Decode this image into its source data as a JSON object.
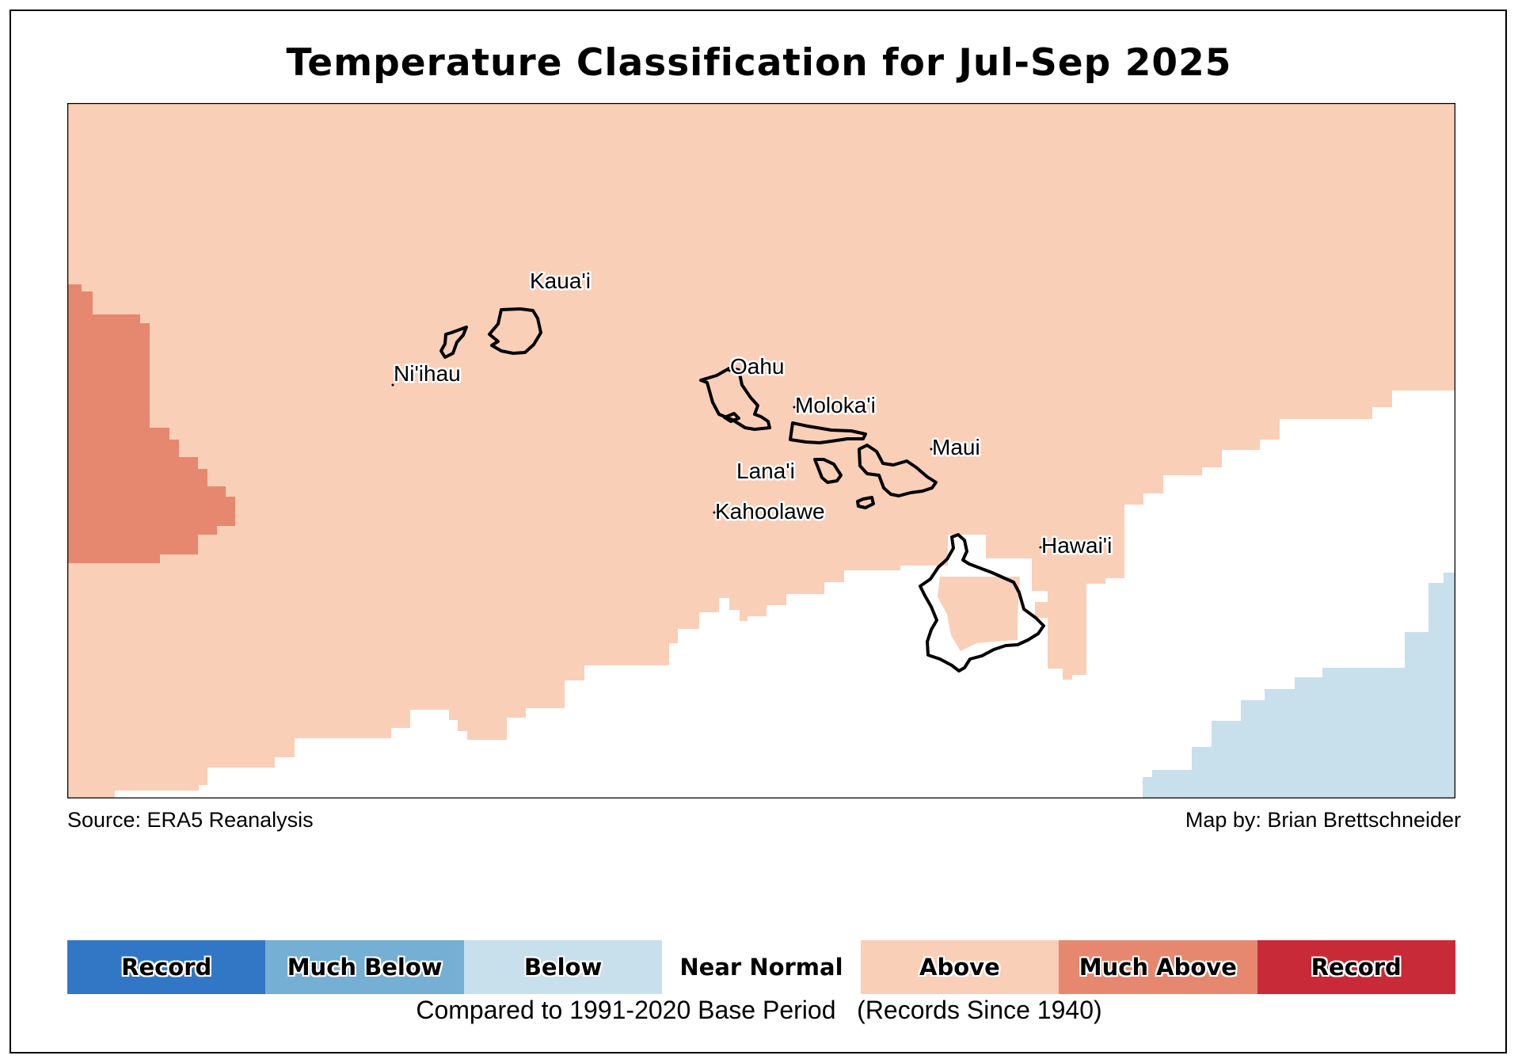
{
  "title": "Temperature Classification for Jul-Sep 2025",
  "source": "Source: ERA5 Reanalysis",
  "author": "Map by: Brian Brettschneider",
  "caption": "Compared to 1991-2020 Base Period   (Records Since 1940)",
  "colors": {
    "record_low": "#3177c5",
    "much_below": "#75afd3",
    "below": "#c8dfec",
    "near_normal": "#ffffff",
    "above": "#f9cfb7",
    "much_above": "#e6886f",
    "record_high": "#c92a37",
    "coastline": "#000000"
  },
  "legend": [
    {
      "label": "Record",
      "color": "#3177c5"
    },
    {
      "label": "Much Below",
      "color": "#75afd3"
    },
    {
      "label": "Below",
      "color": "#c8dfec"
    },
    {
      "label": "Near Normal",
      "color": "#ffffff"
    },
    {
      "label": "Above",
      "color": "#f9cfb7"
    },
    {
      "label": "Much Above",
      "color": "#e6886f"
    },
    {
      "label": "Record",
      "color": "#c92a37"
    }
  ],
  "islands": [
    "Kaua'i",
    "Ni'ihau",
    "Oahu",
    "Moloka'i",
    "Maui",
    "Lana'i",
    "Kahoolawe",
    "Hawai'i"
  ]
}
